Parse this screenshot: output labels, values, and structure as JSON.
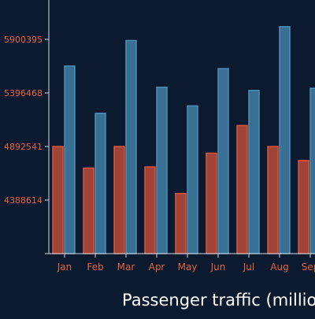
{
  "chart_data": {
    "type": "bar",
    "title": "",
    "xlabel": "Passenger traffic (millio",
    "ylabel": "",
    "categories": [
      "Jan",
      "Feb",
      "Mar",
      "Apr",
      "May",
      "Jun",
      "Jul",
      "Aug",
      "Sep"
    ],
    "y_ticks": [
      "4388614",
      "4892541",
      "5396468",
      "5900395"
    ],
    "ylim": [
      4080000,
      6050000
    ],
    "grid": false,
    "legend": "none",
    "series": [
      {
        "values": [
          4892541,
          4690000,
          4892541,
          4700000,
          4450000,
          4830000,
          5090000,
          4892541,
          4760000
        ],
        "color": "#d9553b"
      },
      {
        "values": [
          5650000,
          5205000,
          5890000,
          5450000,
          5275000,
          5625000,
          5420000,
          6020000,
          5440000
        ],
        "color": "#4a90b8"
      }
    ],
    "colors": {
      "background": "#0b1a2f",
      "axis": "#cfd8e3",
      "tick_label": "#e3623e",
      "title_text": "#ffffff"
    }
  }
}
